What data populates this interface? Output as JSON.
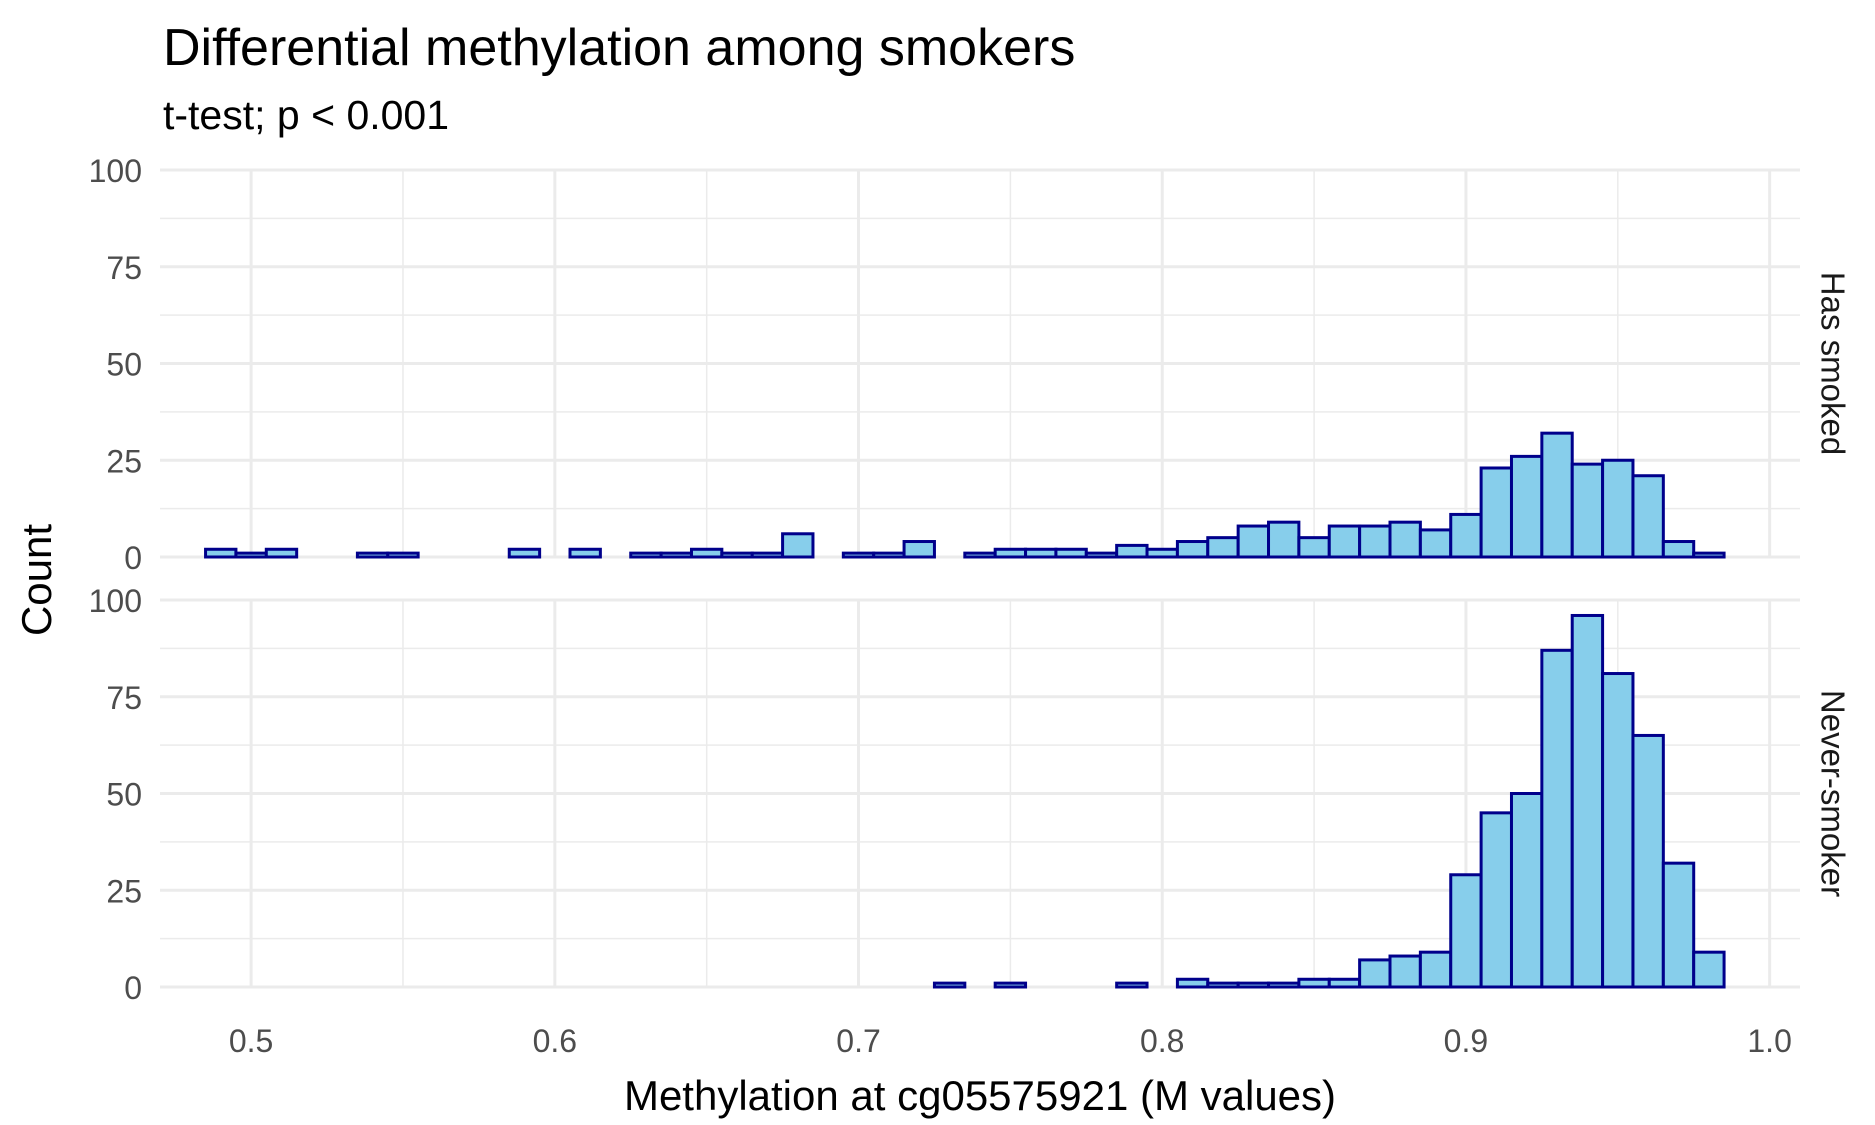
{
  "chart_data": {
    "type": "bar",
    "title": "Differential methylation among smokers",
    "subtitle": "t-test; p < 0.001",
    "xlabel": "Methylation at cg05575921 (M values)",
    "ylabel": "Count",
    "xlim": [
      0.47,
      1.01
    ],
    "ylim": [
      0,
      100
    ],
    "x_ticks": [
      "0.5",
      "0.6",
      "0.7",
      "0.8",
      "0.9",
      "1.0"
    ],
    "y_ticks": [
      "0",
      "25",
      "50",
      "75",
      "100"
    ],
    "grid": true,
    "bin_width": 0.01,
    "bin_start": 0.485,
    "colors": {
      "fill": "#87CEEB",
      "stroke": "#00008B",
      "grid": "#ebebeb",
      "tick_text": "#4d4d4d"
    },
    "facets": [
      {
        "label": "Has smoked",
        "values": [
          2,
          1,
          2,
          0,
          0,
          1,
          1,
          0,
          0,
          0,
          2,
          0,
          2,
          0,
          1,
          1,
          2,
          1,
          1,
          6,
          0,
          1,
          1,
          4,
          0,
          1,
          2,
          2,
          2,
          1,
          3,
          2,
          4,
          5,
          8,
          9,
          5,
          8,
          8,
          9,
          7,
          11,
          23,
          26,
          32,
          24,
          25,
          21,
          4,
          1
        ]
      },
      {
        "label": "Never-smoker",
        "values": [
          0,
          0,
          0,
          0,
          0,
          0,
          0,
          0,
          0,
          0,
          0,
          0,
          0,
          0,
          0,
          0,
          0,
          0,
          0,
          0,
          0,
          0,
          0,
          0,
          1,
          0,
          1,
          0,
          0,
          0,
          1,
          0,
          2,
          1,
          1,
          1,
          2,
          2,
          7,
          8,
          9,
          29,
          45,
          50,
          87,
          96,
          81,
          65,
          32,
          9
        ]
      }
    ]
  }
}
